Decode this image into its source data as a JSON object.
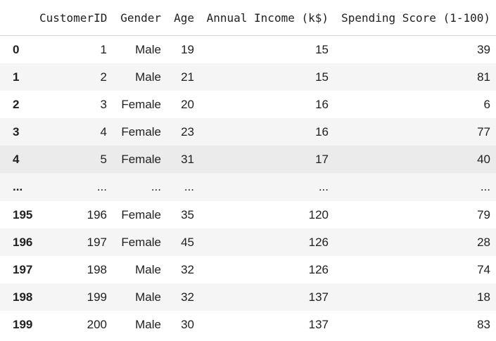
{
  "dataframe": {
    "index_header": "",
    "columns": [
      "CustomerID",
      "Gender",
      "Age",
      "Annual Income (k$)",
      "Spending Score (1-100)"
    ],
    "rows": [
      {
        "index": "0",
        "cells": [
          "1",
          "Male",
          "19",
          "15",
          "39"
        ]
      },
      {
        "index": "1",
        "cells": [
          "2",
          "Male",
          "21",
          "15",
          "81"
        ]
      },
      {
        "index": "2",
        "cells": [
          "3",
          "Female",
          "20",
          "16",
          "6"
        ]
      },
      {
        "index": "3",
        "cells": [
          "4",
          "Female",
          "23",
          "16",
          "77"
        ]
      },
      {
        "index": "4",
        "cells": [
          "5",
          "Female",
          "31",
          "17",
          "40"
        ]
      },
      {
        "index": "...",
        "cells": [
          "...",
          "...",
          "...",
          "...",
          "..."
        ]
      },
      {
        "index": "195",
        "cells": [
          "196",
          "Female",
          "35",
          "120",
          "79"
        ]
      },
      {
        "index": "196",
        "cells": [
          "197",
          "Female",
          "45",
          "126",
          "28"
        ]
      },
      {
        "index": "197",
        "cells": [
          "198",
          "Male",
          "32",
          "126",
          "74"
        ]
      },
      {
        "index": "198",
        "cells": [
          "199",
          "Male",
          "32",
          "137",
          "18"
        ]
      },
      {
        "index": "199",
        "cells": [
          "200",
          "Male",
          "30",
          "137",
          "83"
        ]
      }
    ],
    "hovered_row": 4
  }
}
